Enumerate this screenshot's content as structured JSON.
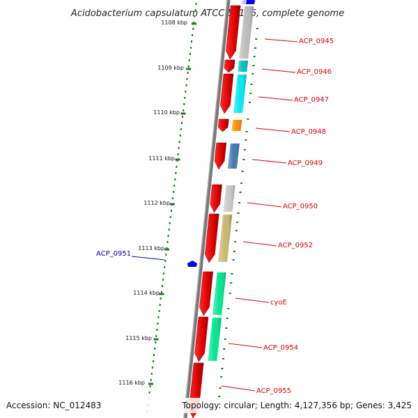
{
  "title": "Acidobacterium capsulatum ATCC 51196, complete genome",
  "ruler": [
    {
      "label": "1108 kbp"
    },
    {
      "label": "1109 kbp"
    },
    {
      "label": "1110 kbp"
    },
    {
      "label": "1111 kbp"
    },
    {
      "label": "1112 kbp"
    },
    {
      "label": "1113 kbp"
    },
    {
      "label": "1114 kbp"
    },
    {
      "label": "1115 kbp"
    },
    {
      "label": "1116 kbp"
    }
  ],
  "gene_labels": [
    {
      "label": "ACP_0945",
      "color": "#dd0000"
    },
    {
      "label": "ACP_0946",
      "color": "#dd0000"
    },
    {
      "label": "ACP_0947",
      "color": "#dd0000"
    },
    {
      "label": "ACP_0948",
      "color": "#dd0000"
    },
    {
      "label": "ACP_0949",
      "color": "#dd0000"
    },
    {
      "label": "ACP_0950",
      "color": "#dd0000"
    },
    {
      "label": "ACP_0952",
      "color": "#dd0000"
    },
    {
      "label": "cyoE",
      "color": "#dd0000"
    },
    {
      "label": "ACP_0954",
      "color": "#dd0000"
    },
    {
      "label": "ACP_0955",
      "color": "#dd0000"
    }
  ],
  "negative_label": {
    "label": "ACP_0951",
    "color": "#0000cc"
  },
  "cog_colors": [
    "#bbbbbb",
    "#00bcc8",
    "#00e8f0",
    "#ff8a00",
    "#3f7ab0",
    "#c8c8c8",
    "#c8b870",
    "#00e890",
    "#00e890"
  ],
  "footer": {
    "accession": "Accession: NC_012483",
    "topology": "Topology: circular; Length: 4,127,356 bp; Genes: 3,425"
  }
}
